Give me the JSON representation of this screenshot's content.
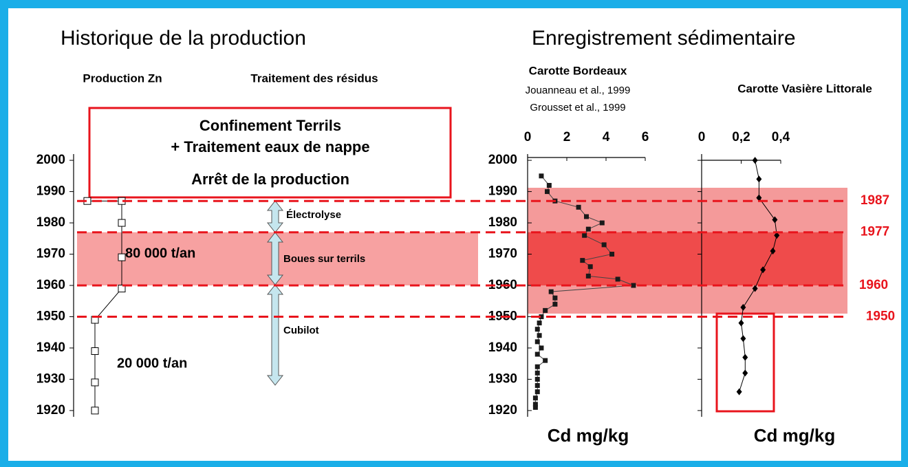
{
  "titles": {
    "left": "Historique de la production",
    "right": "Enregistrement sédimentaire"
  },
  "treatment_header": "Traitement des résidus",
  "box": [
    "Confinement Terrils",
    "+ Traitement eaux de nappe",
    "Arrêt de la production"
  ],
  "annotations": {
    "high": "80 000 t/an",
    "low": "20 000 t/an",
    "electrolysis": "Électrolyse",
    "sludge": "Boues sur terrils",
    "cupola": "Cubilot"
  },
  "markers": [
    1987,
    1977,
    1960,
    1950
  ],
  "chart_data": [
    {
      "type": "line",
      "title": "Production Zn",
      "y": [
        1920,
        1929,
        1939,
        1949,
        1959,
        1969,
        1980,
        1987,
        1987
      ],
      "values": [
        20000,
        20000,
        20000,
        20000,
        80000,
        80000,
        80000,
        80000,
        3000
      ],
      "ylim": [
        1918,
        2002
      ],
      "yticks": [
        1920,
        1930,
        1940,
        1950,
        1960,
        1970,
        1980,
        1990,
        2000
      ]
    },
    {
      "type": "line",
      "title": "Carotte Bordeaux",
      "subtitle": [
        "Jouanneau et al., 1999",
        "Grousset et al., 1999"
      ],
      "xlabel": "Cd mg/kg",
      "y": [
        1995,
        1992,
        1990,
        1987,
        1985,
        1982,
        1980,
        1978,
        1976,
        1973,
        1970,
        1968,
        1966,
        1963,
        1962,
        1960,
        1958,
        1956,
        1954,
        1952,
        1950,
        1948,
        1946,
        1944,
        1942,
        1940,
        1938,
        1936,
        1934,
        1932,
        1930,
        1928,
        1926,
        1924,
        1922,
        1921
      ],
      "values": [
        0.7,
        1.1,
        1.0,
        1.4,
        2.6,
        3.0,
        3.8,
        3.1,
        2.9,
        3.9,
        4.3,
        2.8,
        3.2,
        3.1,
        4.6,
        5.4,
        1.2,
        1.4,
        1.4,
        0.9,
        0.7,
        0.6,
        0.5,
        0.6,
        0.5,
        0.7,
        0.5,
        0.9,
        0.5,
        0.5,
        0.5,
        0.5,
        0.5,
        0.4,
        0.4,
        0.4
      ],
      "xlim": [
        0,
        6
      ],
      "xticks": [
        0,
        2,
        4,
        6
      ],
      "ylim": [
        1918,
        2002
      ],
      "yticks": [
        1920,
        1930,
        1940,
        1950,
        1960,
        1970,
        1980,
        1990,
        2000
      ]
    },
    {
      "type": "line",
      "title": "Carotte Vasière Littorale",
      "xlabel": "Cd mg/kg",
      "y": [
        2000,
        1994,
        1988,
        1981,
        1976,
        1971,
        1965,
        1959,
        1953,
        1948,
        1943,
        1937,
        1932,
        1926
      ],
      "values": [
        0.27,
        0.29,
        0.29,
        0.37,
        0.38,
        0.36,
        0.31,
        0.27,
        0.21,
        0.2,
        0.21,
        0.22,
        0.22,
        0.19
      ],
      "xlim": [
        0,
        0.4
      ],
      "xticks": [
        0,
        {
          "value": 0.2,
          "label": "0,2"
        },
        {
          "value": 0.4,
          "label": "0,4"
        }
      ],
      "ylim": [
        1918,
        2002
      ]
    }
  ]
}
